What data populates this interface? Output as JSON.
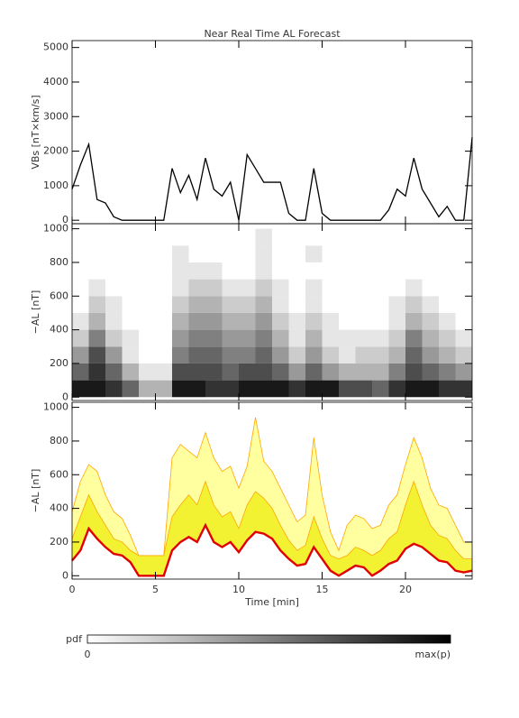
{
  "chart_data": [
    {
      "type": "line",
      "title": "Near Real Time AL Forecast",
      "ylabel": "VBs [nT×km/s]",
      "x": [
        0,
        0.5,
        1,
        1.5,
        2,
        2.5,
        3,
        3.5,
        4,
        4.5,
        5,
        5.5,
        6,
        6.5,
        7,
        7.5,
        8,
        8.5,
        9,
        9.5,
        10,
        10.5,
        11,
        11.5,
        12,
        12.5,
        13,
        13.5,
        14,
        14.5,
        15,
        15.5,
        16,
        16.5,
        17,
        17.5,
        18,
        18.5,
        19,
        19.5,
        20,
        20.5,
        21,
        21.5,
        22,
        22.5,
        23,
        23.5,
        24
      ],
      "values": [
        900,
        1600,
        2200,
        600,
        500,
        100,
        0,
        0,
        0,
        0,
        0,
        0,
        1500,
        800,
        1300,
        600,
        1800,
        900,
        700,
        1100,
        0,
        1900,
        1500,
        1100,
        1100,
        1100,
        200,
        0,
        0,
        1500,
        200,
        0,
        0,
        0,
        0,
        0,
        0,
        0,
        300,
        900,
        700,
        1800,
        900,
        500,
        100,
        400,
        0,
        0,
        2400
      ],
      "color": "#000000",
      "xlim": [
        0,
        24
      ],
      "xticks": [
        0,
        5,
        10,
        15,
        20
      ],
      "ylim": [
        -100,
        5200
      ],
      "yticks": [
        0,
        1000,
        2000,
        3000,
        4000,
        5000
      ]
    },
    {
      "type": "heatmap",
      "ylabel": "−AL [nT]",
      "x_bins": [
        0,
        1,
        2,
        3,
        4,
        5,
        6,
        7,
        8,
        9,
        10,
        11,
        12,
        13,
        14,
        15,
        16,
        17,
        18,
        19,
        20,
        21,
        22,
        23,
        24
      ],
      "y_bins": [
        0,
        100,
        200,
        300,
        400,
        500,
        600,
        700,
        800,
        900,
        1000
      ],
      "z": [
        [
          0.9,
          0.9,
          0.8,
          0.6,
          0.3,
          0.3,
          0.9,
          0.9,
          0.8,
          0.8,
          0.9,
          0.9,
          0.9,
          0.8,
          0.9,
          0.9,
          0.7,
          0.7,
          0.6,
          0.8,
          0.9,
          0.9,
          0.8,
          0.8
        ],
        [
          0.6,
          0.8,
          0.6,
          0.3,
          0.1,
          0.1,
          0.7,
          0.7,
          0.7,
          0.6,
          0.7,
          0.7,
          0.6,
          0.4,
          0.6,
          0.4,
          0.3,
          0.3,
          0.3,
          0.5,
          0.7,
          0.6,
          0.5,
          0.4
        ],
        [
          0.4,
          0.7,
          0.4,
          0.1,
          0,
          0,
          0.5,
          0.6,
          0.6,
          0.5,
          0.5,
          0.6,
          0.4,
          0.2,
          0.4,
          0.2,
          0.1,
          0.2,
          0.2,
          0.3,
          0.6,
          0.4,
          0.3,
          0.2
        ],
        [
          0.2,
          0.5,
          0.2,
          0.1,
          0,
          0,
          0.4,
          0.5,
          0.5,
          0.4,
          0.4,
          0.5,
          0.3,
          0.1,
          0.3,
          0.1,
          0.1,
          0.1,
          0.1,
          0.2,
          0.5,
          0.3,
          0.2,
          0.1
        ],
        [
          0.1,
          0.3,
          0.1,
          0,
          0,
          0,
          0.3,
          0.4,
          0.4,
          0.3,
          0.3,
          0.4,
          0.2,
          0.1,
          0.2,
          0.1,
          0,
          0,
          0,
          0.1,
          0.3,
          0.2,
          0.1,
          0
        ],
        [
          0,
          0.2,
          0.1,
          0,
          0,
          0,
          0.2,
          0.3,
          0.3,
          0.2,
          0.2,
          0.3,
          0.1,
          0,
          0.1,
          0,
          0,
          0,
          0,
          0.1,
          0.2,
          0.1,
          0,
          0
        ],
        [
          0,
          0.1,
          0,
          0,
          0,
          0,
          0.1,
          0.2,
          0.2,
          0.1,
          0.1,
          0.2,
          0.1,
          0,
          0.1,
          0,
          0,
          0,
          0,
          0,
          0.1,
          0,
          0,
          0
        ],
        [
          0,
          0,
          0,
          0,
          0,
          0,
          0.1,
          0.1,
          0.1,
          0,
          0,
          0.1,
          0,
          0,
          0,
          0,
          0,
          0,
          0,
          0,
          0,
          0,
          0,
          0
        ],
        [
          0,
          0,
          0,
          0,
          0,
          0,
          0.1,
          0,
          0,
          0,
          0,
          0.1,
          0,
          0,
          0.1,
          0,
          0,
          0,
          0,
          0,
          0,
          0,
          0,
          0
        ],
        [
          0,
          0,
          0,
          0,
          0,
          0,
          0,
          0,
          0,
          0,
          0,
          0.1,
          0,
          0,
          0,
          0,
          0,
          0,
          0,
          0,
          0,
          0,
          0,
          0
        ]
      ],
      "xlim": [
        0,
        24
      ],
      "xticks": [
        0,
        5,
        10,
        15,
        20
      ],
      "ylim": [
        -20,
        1030
      ],
      "yticks": [
        0,
        200,
        400,
        600,
        800,
        1000
      ]
    },
    {
      "type": "band",
      "ylabel": "−AL [nT]",
      "xlabel": "Time [min]",
      "xticklabels": true,
      "x": [
        0,
        0.5,
        1,
        1.5,
        2,
        2.5,
        3,
        3.5,
        4,
        4.5,
        5,
        5.5,
        6,
        6.5,
        7,
        7.5,
        8,
        8.5,
        9,
        9.5,
        10,
        10.5,
        11,
        11.5,
        12,
        12.5,
        13,
        13.5,
        14,
        14.5,
        15,
        15.5,
        16,
        16.5,
        17,
        17.5,
        18,
        18.5,
        19,
        19.5,
        20,
        20.5,
        21,
        21.5,
        22,
        22.5,
        23,
        23.5,
        24
      ],
      "series": [
        {
          "color": "#e00000",
          "values": [
            90,
            150,
            280,
            220,
            170,
            130,
            120,
            80,
            0,
            0,
            0,
            0,
            150,
            200,
            230,
            200,
            300,
            200,
            170,
            200,
            140,
            210,
            260,
            250,
            220,
            150,
            100,
            60,
            70,
            170,
            100,
            30,
            0,
            30,
            60,
            50,
            0,
            30,
            70,
            90,
            160,
            190,
            170,
            130,
            90,
            80,
            30,
            20,
            30
          ]
        },
        {
          "color": "#ffa500",
          "fill": "#f2f232",
          "values": [
            220,
            350,
            480,
            380,
            300,
            220,
            200,
            150,
            120,
            120,
            120,
            120,
            350,
            420,
            480,
            420,
            560,
            420,
            350,
            380,
            280,
            420,
            500,
            460,
            400,
            300,
            210,
            150,
            180,
            350,
            220,
            120,
            100,
            120,
            170,
            150,
            120,
            150,
            220,
            260,
            420,
            560,
            420,
            300,
            240,
            220,
            150,
            100,
            100
          ]
        },
        {
          "color": "#ffa500",
          "fill": "#ffffa0",
          "values": [
            380,
            560,
            660,
            620,
            480,
            380,
            340,
            240,
            120,
            120,
            120,
            120,
            700,
            780,
            740,
            700,
            850,
            700,
            620,
            650,
            520,
            650,
            940,
            680,
            620,
            520,
            420,
            320,
            360,
            820,
            480,
            260,
            150,
            300,
            360,
            340,
            280,
            300,
            420,
            480,
            660,
            820,
            700,
            520,
            420,
            400,
            300,
            200,
            200
          ]
        }
      ],
      "xlim": [
        0,
        24
      ],
      "xticks": [
        0,
        5,
        10,
        15,
        20
      ],
      "ylim": [
        -20,
        1030
      ],
      "yticks": [
        0,
        200,
        400,
        600,
        800,
        1000
      ]
    }
  ],
  "colorbar": {
    "label": "pdf",
    "min_label": "0",
    "max_label": "max(p)"
  }
}
